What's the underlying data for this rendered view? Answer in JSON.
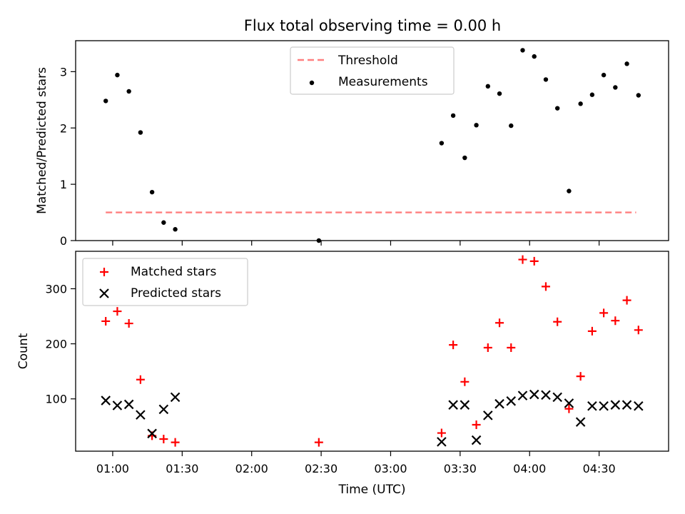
{
  "figure": {
    "title": "Flux total observing time = 0.00 h"
  },
  "colors": {
    "threshold": "#ff7f7f",
    "measurements": "#000000",
    "matched": "#ff0000",
    "predicted": "#000000"
  },
  "chart_data": [
    {
      "type": "scatter",
      "title": "Flux total observing time = 0.00 h",
      "xlabel": "",
      "ylabel": "Matched/Predicted stars",
      "xlim": [
        "00:44",
        "05:00"
      ],
      "ylim": [
        0,
        3.55
      ],
      "yticks": [
        0,
        1,
        2,
        3
      ],
      "xticks": [
        "01:00",
        "01:30",
        "02:00",
        "02:30",
        "03:00",
        "03:30",
        "04:00",
        "04:30"
      ],
      "show_xtick_labels": false,
      "legend_position": "upper center",
      "series": [
        {
          "name": "Threshold",
          "style": "dashed-line",
          "x": [
            "00:57",
            "04:46"
          ],
          "y": [
            0.5,
            0.5
          ]
        },
        {
          "name": "Measurements",
          "style": "dot",
          "x": [
            "00:57",
            "01:02",
            "01:07",
            "01:12",
            "01:17",
            "01:22",
            "01:27",
            "02:29",
            "03:22",
            "03:27",
            "03:32",
            "03:37",
            "03:42",
            "03:47",
            "03:52",
            "03:57",
            "04:02",
            "04:07",
            "04:12",
            "04:17",
            "04:22",
            "04:27",
            "04:32",
            "04:37",
            "04:42",
            "04:47"
          ],
          "y": [
            2.48,
            2.94,
            2.65,
            1.92,
            0.86,
            0.32,
            0.2,
            0.0,
            1.73,
            2.22,
            1.47,
            2.05,
            2.74,
            2.61,
            2.04,
            3.38,
            3.27,
            2.86,
            2.35,
            0.88,
            2.43,
            2.59,
            2.94,
            2.72,
            3.14,
            2.58
          ]
        }
      ]
    },
    {
      "type": "scatter",
      "xlabel": "Time (UTC)",
      "ylabel": "Count",
      "xlim": [
        "00:44",
        "05:00"
      ],
      "ylim": [
        5,
        368
      ],
      "yticks": [
        100,
        200,
        300
      ],
      "xticks": [
        "01:00",
        "01:30",
        "02:00",
        "02:30",
        "03:00",
        "03:30",
        "04:00",
        "04:30"
      ],
      "legend_position": "upper left",
      "series": [
        {
          "name": "Matched stars",
          "marker": "+",
          "x": [
            "00:57",
            "01:02",
            "01:07",
            "01:12",
            "01:17",
            "01:22",
            "01:27",
            "02:29",
            "03:22",
            "03:27",
            "03:32",
            "03:37",
            "03:42",
            "03:47",
            "03:52",
            "03:57",
            "04:02",
            "04:07",
            "04:12",
            "04:17",
            "04:22",
            "04:27",
            "04:32",
            "04:37",
            "04:42",
            "04:47"
          ],
          "y": [
            241,
            259,
            237,
            135,
            33,
            27,
            21,
            21,
            38,
            198,
            131,
            53,
            193,
            238,
            193,
            353,
            350,
            304,
            240,
            82,
            141,
            223,
            256,
            242,
            279,
            225
          ]
        },
        {
          "name": "Predicted stars",
          "marker": "x",
          "x": [
            "00:57",
            "01:02",
            "01:07",
            "01:12",
            "01:17",
            "01:22",
            "01:27",
            "03:22",
            "03:27",
            "03:32",
            "03:37",
            "03:42",
            "03:47",
            "03:52",
            "03:57",
            "04:02",
            "04:07",
            "04:12",
            "04:17",
            "04:22",
            "04:27",
            "04:32",
            "04:37",
            "04:42",
            "04:47"
          ],
          "y": [
            97,
            88,
            90,
            71,
            37,
            81,
            103,
            22,
            89,
            89,
            25,
            70,
            91,
            96,
            106,
            108,
            107,
            103,
            92,
            58,
            87,
            87,
            89,
            89,
            87
          ]
        }
      ]
    }
  ]
}
